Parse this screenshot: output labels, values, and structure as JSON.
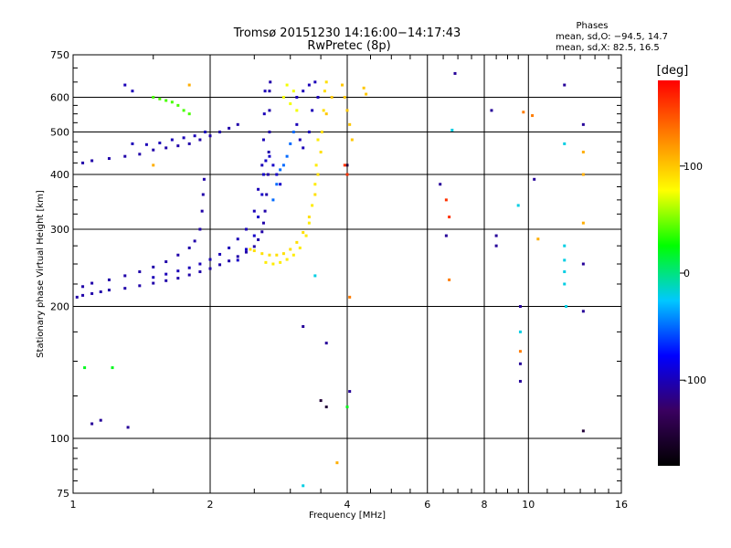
{
  "chart_data": {
    "type": "scatter",
    "title": "Tromsø 20151230 14:16:00−14:17:43",
    "subtitle": "RwPretec (8p)",
    "xlabel": "Frequency [MHz]",
    "ylabel": "Stationary phase Virtual Height [km]",
    "x_scale": "log",
    "y_scale": "log",
    "xlim": [
      1,
      16
    ],
    "ylim": [
      75,
      750
    ],
    "x_ticks": [
      {
        "v": 1,
        "label": "1"
      },
      {
        "v": 2,
        "label": "2"
      },
      {
        "v": 4,
        "label": "4"
      },
      {
        "v": 6,
        "label": "6"
      },
      {
        "v": 8,
        "label": "8"
      },
      {
        "v": 10,
        "label": "10"
      },
      {
        "v": 16,
        "label": "16"
      }
    ],
    "x_grid": [
      1,
      2,
      4,
      6,
      8,
      10,
      16
    ],
    "y_ticks": [
      {
        "v": 75,
        "label": "75"
      },
      {
        "v": 100,
        "label": "100"
      },
      {
        "v": 200,
        "label": "200"
      },
      {
        "v": 300,
        "label": "300"
      },
      {
        "v": 400,
        "label": "400"
      },
      {
        "v": 500,
        "label": "500"
      },
      {
        "v": 600,
        "label": "600"
      },
      {
        "v": 750,
        "label": "750"
      }
    ],
    "y_grid": [
      100,
      200,
      300,
      400,
      500,
      600
    ],
    "grid": true,
    "info": {
      "heading": "Phases",
      "line1": "mean, sd,O: −94.5, 14.7",
      "line2": "mean, sd,X:  82.5, 16.5"
    },
    "colorbar": {
      "label": "[deg]",
      "range": [
        -180,
        180
      ],
      "ticks": [
        {
          "v": 100,
          "label": "100"
        },
        {
          "v": 0,
          "label": "0"
        },
        {
          "v": -100,
          "label": "-100"
        }
      ],
      "colors": [
        "#000000",
        "#3a0060",
        "#0000ff",
        "#00c8ff",
        "#00ff00",
        "#ffff00",
        "#ff8000",
        "#ff0000"
      ]
    },
    "series": [
      {
        "phase": -105,
        "points": [
          [
            1.02,
            210
          ],
          [
            1.05,
            212
          ],
          [
            1.1,
            214
          ],
          [
            1.15,
            216
          ],
          [
            1.2,
            218
          ],
          [
            1.3,
            220
          ],
          [
            1.4,
            223
          ],
          [
            1.5,
            226
          ],
          [
            1.6,
            229
          ],
          [
            1.7,
            232
          ],
          [
            1.8,
            236
          ],
          [
            1.9,
            240
          ],
          [
            2.0,
            244
          ],
          [
            2.1,
            249
          ],
          [
            2.2,
            254
          ],
          [
            2.3,
            260
          ],
          [
            2.4,
            266
          ],
          [
            2.5,
            274
          ],
          [
            2.55,
            284
          ],
          [
            2.6,
            296
          ],
          [
            2.62,
            310
          ],
          [
            2.64,
            330
          ],
          [
            2.66,
            360
          ],
          [
            2.68,
            400
          ],
          [
            2.69,
            450
          ],
          [
            2.7,
            500
          ],
          [
            2.7,
            560
          ],
          [
            2.7,
            620
          ],
          [
            2.71,
            650
          ]
        ]
      },
      {
        "phase": -105,
        "points": [
          [
            1.05,
            222
          ],
          [
            1.1,
            226
          ],
          [
            1.2,
            230
          ],
          [
            1.3,
            235
          ],
          [
            1.4,
            240
          ],
          [
            1.5,
            246
          ],
          [
            1.6,
            253
          ],
          [
            1.7,
            262
          ],
          [
            1.8,
            272
          ],
          [
            1.85,
            282
          ],
          [
            1.9,
            300
          ],
          [
            1.92,
            330
          ],
          [
            1.93,
            360
          ],
          [
            1.94,
            390
          ]
        ]
      },
      {
        "phase": -100,
        "points": [
          [
            1.5,
            233
          ],
          [
            1.6,
            237
          ],
          [
            1.7,
            241
          ],
          [
            1.8,
            245
          ],
          [
            1.9,
            250
          ],
          [
            2.0,
            256
          ],
          [
            2.1,
            263
          ],
          [
            2.2,
            272
          ],
          [
            2.3,
            285
          ],
          [
            2.4,
            300
          ],
          [
            2.5,
            330
          ],
          [
            2.55,
            370
          ],
          [
            2.6,
            420
          ],
          [
            2.62,
            480
          ],
          [
            2.63,
            550
          ],
          [
            2.64,
            620
          ]
        ]
      },
      {
        "phase": -95,
        "points": [
          [
            2.3,
            255
          ],
          [
            2.4,
            270
          ],
          [
            2.5,
            290
          ],
          [
            2.55,
            320
          ],
          [
            2.6,
            360
          ],
          [
            2.62,
            400
          ],
          [
            2.65,
            430
          ],
          [
            2.7,
            440
          ],
          [
            2.75,
            420
          ],
          [
            2.8,
            400
          ],
          [
            2.85,
            380
          ]
        ]
      },
      {
        "phase": -50,
        "points": [
          [
            2.75,
            350
          ],
          [
            2.8,
            380
          ],
          [
            2.85,
            410
          ],
          [
            2.9,
            420
          ],
          [
            2.95,
            440
          ],
          [
            3.0,
            470
          ],
          [
            3.05,
            500
          ]
        ]
      },
      {
        "phase": -100,
        "points": [
          [
            3.1,
            600
          ],
          [
            3.2,
            620
          ],
          [
            3.3,
            640
          ],
          [
            3.4,
            650
          ],
          [
            3.1,
            520
          ],
          [
            3.15,
            480
          ],
          [
            3.2,
            460
          ],
          [
            3.3,
            500
          ],
          [
            3.35,
            560
          ],
          [
            3.45,
            600
          ]
        ]
      },
      {
        "phase": -105,
        "points": [
          [
            1.05,
            425
          ],
          [
            1.1,
            430
          ],
          [
            1.2,
            435
          ],
          [
            1.3,
            440
          ],
          [
            1.4,
            445
          ],
          [
            1.5,
            455
          ],
          [
            1.6,
            460
          ],
          [
            1.7,
            465
          ],
          [
            1.8,
            470
          ],
          [
            1.9,
            480
          ],
          [
            2.0,
            490
          ],
          [
            2.1,
            500
          ],
          [
            2.2,
            510
          ],
          [
            2.3,
            520
          ]
        ]
      },
      {
        "phase": -100,
        "points": [
          [
            1.35,
            470
          ],
          [
            1.45,
            468
          ],
          [
            1.55,
            472
          ],
          [
            1.65,
            480
          ],
          [
            1.75,
            485
          ],
          [
            1.85,
            490
          ],
          [
            1.95,
            500
          ]
        ]
      },
      {
        "phase": 40,
        "points": [
          [
            1.5,
            600
          ],
          [
            1.55,
            595
          ],
          [
            1.6,
            590
          ],
          [
            1.65,
            585
          ],
          [
            1.7,
            575
          ],
          [
            1.75,
            560
          ],
          [
            1.8,
            550
          ]
        ]
      },
      {
        "phase": -100,
        "points": [
          [
            1.3,
            640
          ],
          [
            1.35,
            620
          ]
        ]
      },
      {
        "phase": 90,
        "points": [
          [
            2.45,
            270
          ],
          [
            2.5,
            268
          ],
          [
            2.6,
            264
          ],
          [
            2.7,
            262
          ],
          [
            2.8,
            262
          ],
          [
            2.9,
            264
          ],
          [
            3.0,
            270
          ],
          [
            3.1,
            280
          ],
          [
            3.2,
            295
          ],
          [
            3.3,
            320
          ],
          [
            3.4,
            360
          ],
          [
            3.45,
            400
          ],
          [
            3.5,
            450
          ],
          [
            3.52,
            500
          ],
          [
            3.55,
            560
          ],
          [
            3.57,
            620
          ],
          [
            3.6,
            650
          ]
        ]
      },
      {
        "phase": 85,
        "points": [
          [
            2.65,
            252
          ],
          [
            2.75,
            250
          ],
          [
            2.85,
            252
          ],
          [
            2.95,
            256
          ],
          [
            3.05,
            262
          ],
          [
            3.15,
            272
          ],
          [
            3.25,
            290
          ],
          [
            3.3,
            310
          ],
          [
            3.35,
            340
          ],
          [
            3.4,
            380
          ],
          [
            3.42,
            420
          ],
          [
            3.45,
            480
          ]
        ]
      },
      {
        "phase": 100,
        "points": [
          [
            3.9,
            640
          ],
          [
            3.95,
            600
          ],
          [
            4.0,
            560
          ],
          [
            4.05,
            520
          ],
          [
            4.1,
            480
          ],
          [
            4.35,
            630
          ],
          [
            4.4,
            610
          ],
          [
            3.6,
            550
          ],
          [
            3.7,
            600
          ]
        ]
      },
      {
        "phase": 75,
        "points": [
          [
            2.9,
            600
          ],
          [
            3.0,
            580
          ],
          [
            3.1,
            560
          ],
          [
            2.95,
            640
          ],
          [
            3.05,
            620
          ]
        ]
      },
      {
        "phase": -110,
        "points": [
          [
            1.1,
            108
          ],
          [
            1.15,
            110
          ],
          [
            1.32,
            106
          ],
          [
            3.2,
            180
          ],
          [
            3.6,
            165
          ],
          [
            4.05,
            128
          ],
          [
            6.4,
            380
          ],
          [
            6.6,
            290
          ],
          [
            8.5,
            290
          ],
          [
            8.5,
            275
          ],
          [
            9.6,
            200
          ],
          [
            9.6,
            148
          ],
          [
            9.6,
            135
          ],
          [
            13.2,
            520
          ],
          [
            12.0,
            640
          ],
          [
            6.9,
            680
          ],
          [
            8.3,
            560
          ],
          [
            10.3,
            390
          ],
          [
            13.2,
            250
          ],
          [
            13.2,
            195
          ]
        ]
      },
      {
        "phase": -150,
        "points": [
          [
            3.5,
            122
          ],
          [
            3.6,
            118
          ],
          [
            13.2,
            104
          ],
          [
            4.0,
            420
          ]
        ]
      },
      {
        "phase": 20,
        "points": [
          [
            1.06,
            145
          ],
          [
            1.22,
            145
          ],
          [
            4.0,
            118
          ]
        ]
      },
      {
        "phase": 160,
        "points": [
          [
            3.95,
            420
          ],
          [
            6.7,
            320
          ],
          [
            6.6,
            350
          ],
          [
            4.0,
            400
          ]
        ]
      },
      {
        "phase": 130,
        "points": [
          [
            6.7,
            230
          ],
          [
            9.6,
            158
          ],
          [
            10.2,
            545
          ],
          [
            4.05,
            210
          ],
          [
            9.75,
            555
          ]
        ]
      },
      {
        "phase": -20,
        "points": [
          [
            12.0,
            275
          ],
          [
            12.0,
            255
          ],
          [
            12.0,
            240
          ],
          [
            12.0,
            225
          ],
          [
            12.1,
            200
          ],
          [
            9.6,
            175
          ],
          [
            9.5,
            340
          ],
          [
            12.0,
            470
          ],
          [
            3.4,
            235
          ],
          [
            3.2,
            78
          ],
          [
            6.8,
            505
          ]
        ]
      },
      {
        "phase": 110,
        "points": [
          [
            13.2,
            450
          ],
          [
            13.2,
            400
          ],
          [
            13.2,
            310
          ],
          [
            10.5,
            285
          ],
          [
            3.8,
            88
          ],
          [
            1.5,
            420
          ],
          [
            1.8,
            640
          ]
        ]
      }
    ]
  }
}
